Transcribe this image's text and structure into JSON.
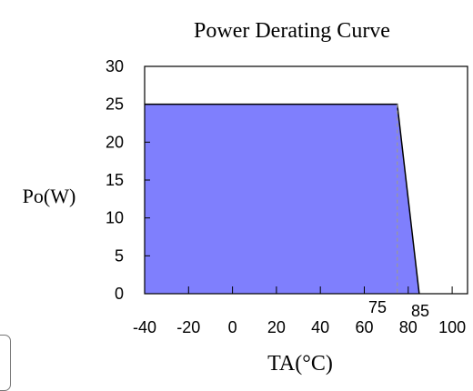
{
  "chart_data": {
    "type": "area",
    "title": "Power Derating Curve",
    "xlabel": "TA(°C)",
    "ylabel": "Po(W)",
    "xlim": [
      -40,
      107
    ],
    "ylim": [
      0,
      30
    ],
    "grid": false,
    "x_ticks": [
      -40,
      -20,
      0,
      20,
      40,
      60,
      80,
      100
    ],
    "y_ticks": [
      0,
      5,
      10,
      15,
      20,
      25,
      30
    ],
    "marker_labels": [
      "75",
      "85"
    ],
    "series": [
      {
        "x": [
          -40,
          75,
          85
        ],
        "y": [
          25,
          25,
          0
        ]
      }
    ],
    "colors": {
      "fill": "#7f7ffd",
      "line": "#000000",
      "dashed": "#999999"
    }
  }
}
